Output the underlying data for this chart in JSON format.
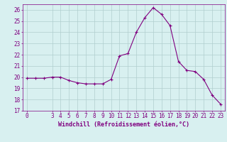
{
  "x": [
    0,
    1,
    2,
    3,
    4,
    5,
    6,
    7,
    8,
    9,
    10,
    11,
    12,
    13,
    14,
    15,
    16,
    17,
    18,
    19,
    20,
    21,
    22,
    23
  ],
  "y": [
    19.9,
    19.9,
    19.9,
    20.0,
    20.0,
    19.7,
    19.5,
    19.4,
    19.4,
    19.4,
    19.8,
    21.9,
    22.1,
    24.0,
    25.3,
    26.2,
    25.6,
    24.6,
    21.4,
    20.6,
    20.5,
    19.8,
    18.4,
    17.6
  ],
  "line_color": "#800080",
  "marker": "+",
  "markersize": 3,
  "bg_color": "#d8f0f0",
  "grid_color": "#b0cece",
  "xlabel": "Windchill (Refroidissement éolien,°C)",
  "xlim_min": -0.5,
  "xlim_max": 23.5,
  "ylim_min": 17,
  "ylim_max": 26.5,
  "yticks": [
    17,
    18,
    19,
    20,
    21,
    22,
    23,
    24,
    25,
    26
  ],
  "xticks": [
    0,
    3,
    4,
    5,
    6,
    7,
    8,
    9,
    10,
    11,
    12,
    13,
    14,
    15,
    16,
    17,
    18,
    19,
    20,
    21,
    22,
    23
  ],
  "font_color": "#800080",
  "font_size": 5.5,
  "xlabel_fontsize": 6,
  "linewidth": 0.8,
  "markeredgewidth": 0.8
}
